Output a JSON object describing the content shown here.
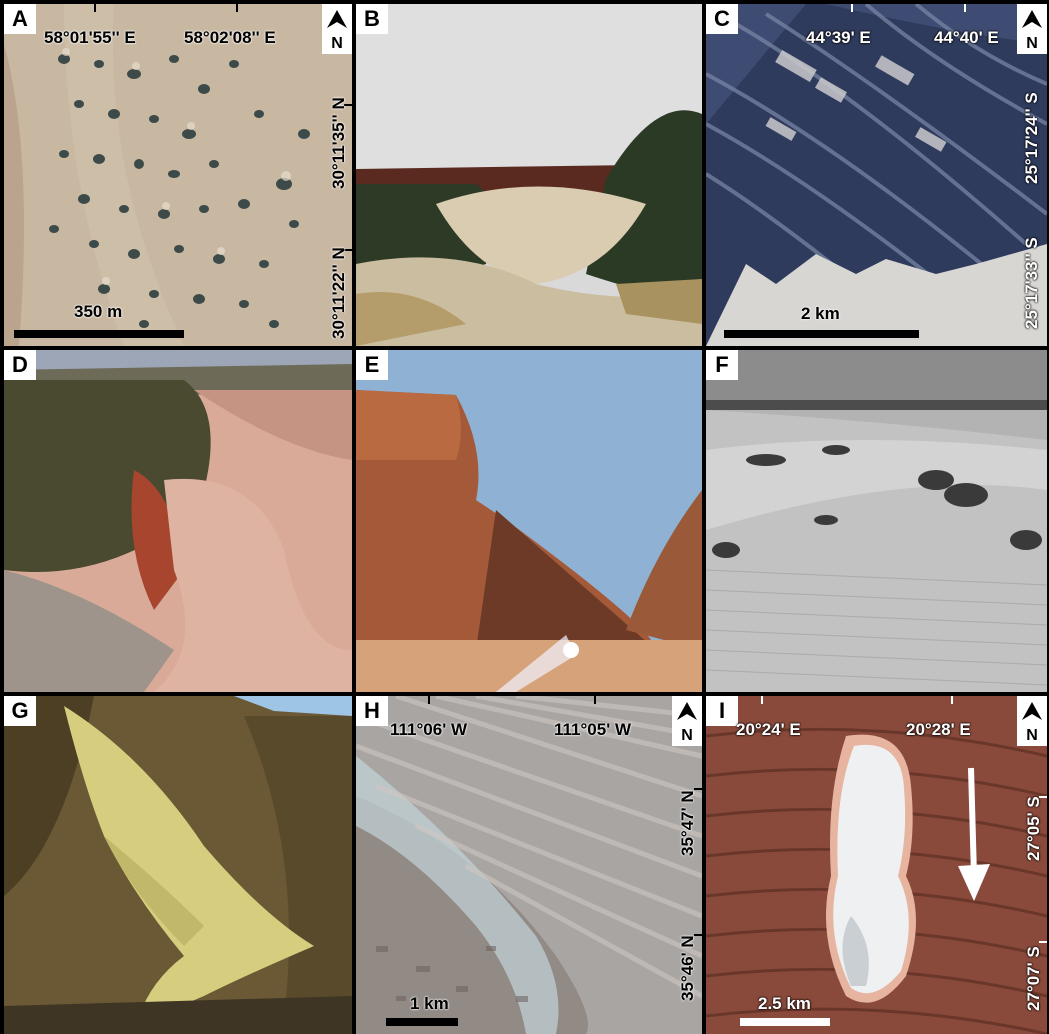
{
  "panels": {
    "A": {
      "label": "A",
      "lon1": "58°01'55'' E",
      "lon2": "58°02'08'' E",
      "lat1": "30°11'35'' N",
      "lat2": "30°11'22'' N",
      "scale": "350 m",
      "north": "N"
    },
    "B": {
      "label": "B"
    },
    "C": {
      "label": "C",
      "lon1": "44°39' E",
      "lon2": "44°40' E",
      "lat1": "25°17'24'' S",
      "lat2": "25°17'33'' S",
      "scale": "2 km",
      "north": "N"
    },
    "D": {
      "label": "D"
    },
    "E": {
      "label": "E"
    },
    "F": {
      "label": "F"
    },
    "G": {
      "label": "G"
    },
    "H": {
      "label": "H",
      "lon1": "111°06' W",
      "lon2": "111°05' W",
      "lat1": "35°47' N",
      "lat2": "35°46' N",
      "scale": "1 km",
      "north": "N"
    },
    "I": {
      "label": "I",
      "lon1": "20°24' E",
      "lon2": "20°28' E",
      "lat1": "27°05' S",
      "lat2": "27°07' S",
      "scale": "2.5 km",
      "north": "N"
    }
  },
  "colors": {
    "A_sand": "#c9b8a2",
    "B_sky": "#dcdcdc",
    "C_dark": "#2f3a5a",
    "D_sand": "#d9ab98",
    "E_sky": "#8fb3d6",
    "E_rock": "#a85f3a",
    "F_gray": "#b5b5b5",
    "G_rock": "#6b5a36",
    "G_fan": "#d7cf7f",
    "H_base": "#a9a5a3",
    "I_red": "#8c4a3c"
  }
}
